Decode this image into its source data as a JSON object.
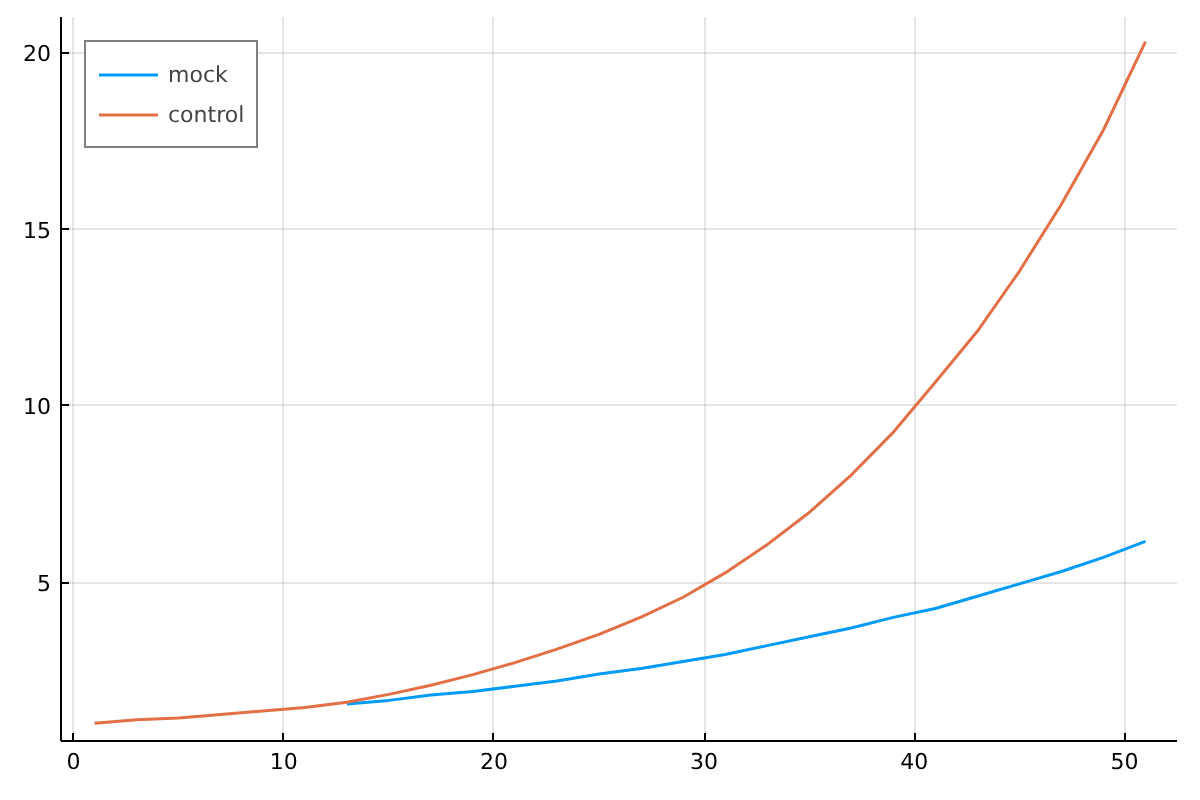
{
  "chart_data": {
    "type": "line",
    "x": [
      1,
      3,
      5,
      7,
      9,
      11,
      13,
      15,
      17,
      19,
      21,
      23,
      25,
      27,
      29,
      31,
      33,
      35,
      37,
      39,
      41,
      43,
      45,
      47,
      49,
      51
    ],
    "series": [
      {
        "name": "mock",
        "color": "#009af9",
        "values": [
          null,
          null,
          null,
          null,
          null,
          null,
          1.55,
          1.65,
          1.8,
          1.9,
          2.05,
          2.2,
          2.4,
          2.55,
          2.75,
          2.95,
          3.2,
          3.45,
          3.7,
          4.0,
          4.25,
          4.6,
          4.95,
          5.3,
          5.7,
          6.15
        ]
      },
      {
        "name": "control",
        "color": "#e26f46",
        "values": [
          1.0,
          1.1,
          1.15,
          1.25,
          1.35,
          1.45,
          1.6,
          1.82,
          2.08,
          2.38,
          2.72,
          3.1,
          3.52,
          4.01,
          4.57,
          5.26,
          6.06,
          6.97,
          8.03,
          9.24,
          10.66,
          12.1,
          13.8,
          15.7,
          17.8,
          20.3
        ]
      }
    ],
    "xlim": [
      -0.6,
      52.5
    ],
    "ylim": [
      0.5,
      21.0
    ],
    "xticks": [
      0,
      10,
      20,
      30,
      40,
      50
    ],
    "yticks": [
      5,
      10,
      15,
      20
    ],
    "grid": true,
    "legend": "top left",
    "line_style": "solid"
  }
}
